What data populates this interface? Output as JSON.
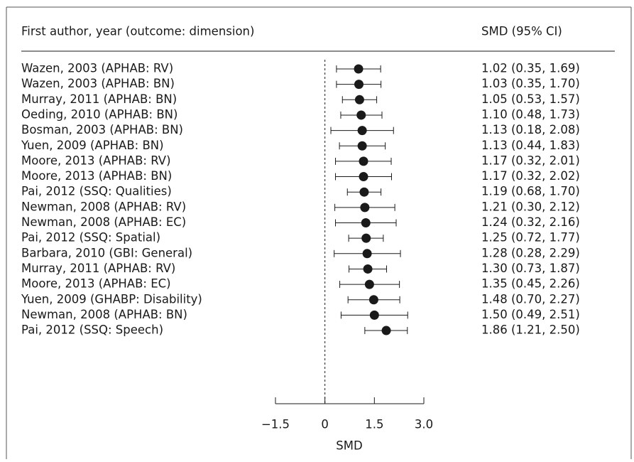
{
  "chart_data": {
    "type": "forest",
    "column_headers": [
      "First author, year (outcome: dimension)",
      "SMD (95% CI)"
    ],
    "categories": [
      "Wazen, 2003 (APHAB: RV)",
      "Wazen, 2003 (APHAB: BN)",
      "Murray, 2011 (APHAB: BN)",
      "Oeding, 2010 (APHAB: BN)",
      "Bosman, 2003 (APHAB: BN)",
      "Yuen, 2009 (APHAB: BN)",
      "Moore, 2013 (APHAB: RV)",
      "Moore, 2013 (APHAB: BN)",
      "Pai, 2012 (SSQ: Qualities)",
      "Newman, 2008 (APHAB: RV)",
      "Newman, 2008 (APHAB: EC)",
      "Pai, 2012 (SSQ: Spatial)",
      "Barbara, 2010 (GBI: General)",
      "Murray, 2011 (APHAB: RV)",
      "Moore, 2013 (APHAB: EC)",
      "Yuen, 2009 (GHABP: Disability)",
      "Newman, 2008 (APHAB: BN)",
      "Pai, 2012 (SSQ: Speech)"
    ],
    "values": [
      1.02,
      1.03,
      1.05,
      1.1,
      1.13,
      1.13,
      1.17,
      1.17,
      1.19,
      1.21,
      1.24,
      1.25,
      1.28,
      1.3,
      1.35,
      1.48,
      1.5,
      1.86
    ],
    "lower": [
      0.35,
      0.35,
      0.53,
      0.48,
      0.18,
      0.44,
      0.32,
      0.32,
      0.68,
      0.3,
      0.32,
      0.72,
      0.28,
      0.73,
      0.45,
      0.7,
      0.49,
      1.21
    ],
    "upper": [
      1.69,
      1.7,
      1.57,
      1.73,
      2.08,
      1.83,
      2.01,
      2.02,
      1.7,
      2.12,
      2.16,
      1.77,
      2.29,
      1.87,
      2.26,
      2.27,
      2.51,
      2.5
    ],
    "value_labels": [
      "1.02 (0.35, 1.69)",
      "1.03 (0.35, 1.70)",
      "1.05 (0.53, 1.57)",
      "1.10 (0.48, 1.73)",
      "1.13 (0.18, 2.08)",
      "1.13 (0.44, 1.83)",
      "1.17 (0.32, 2.01)",
      "1.17 (0.32, 2.02)",
      "1.19 (0.68, 1.70)",
      "1.21 (0.30, 2.12)",
      "1.24 (0.32, 2.16)",
      "1.25 (0.72, 1.77)",
      "1.28 (0.28, 2.29)",
      "1.30 (0.73, 1.87)",
      "1.35 (0.45, 2.26)",
      "1.48 (0.70, 2.27)",
      "1.50 (0.49, 2.51)",
      "1.86 (1.21, 2.50)"
    ],
    "xlim": [
      -1.5,
      3.0
    ],
    "xticks": [
      {
        "value": -1.5,
        "label": "−1.5"
      },
      0,
      1.5,
      {
        "value": 3.0,
        "label": "3.0"
      }
    ],
    "reference_line": 0,
    "xlabel": "SMD",
    "color": "#1a1a1a"
  }
}
